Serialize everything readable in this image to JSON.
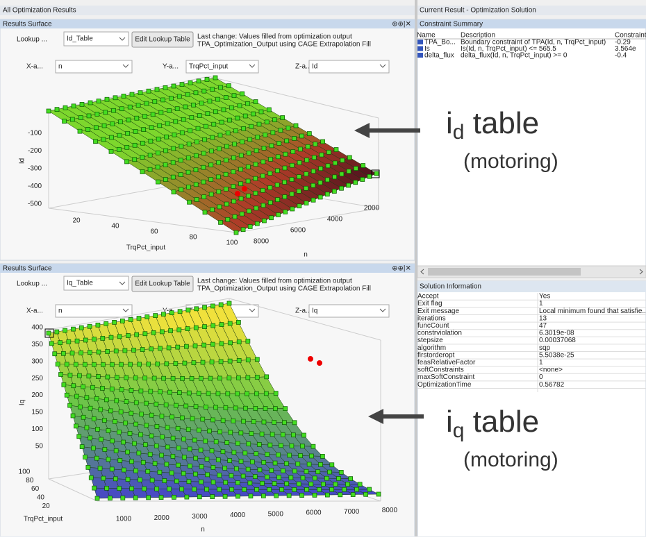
{
  "left_header": "All Optimization Results",
  "right_header": "Current Result - Optimization Solution",
  "panels": [
    {
      "title": "Results Surface",
      "lookup_label": "Lookup ...",
      "lookup_value": "Id_Table",
      "edit_button": "Edit Lookup Table",
      "last_change": [
        "Last change: Values filled from optimization output",
        "TPA_Optimization_Output using CAGE Extrapolation Fill"
      ],
      "x_label": "X-a...",
      "x_value": "n",
      "y_label": "Y-a...",
      "y_value": "TrqPct_input",
      "z_label": "Z-a...",
      "z_value": "Id",
      "plot": {
        "z_ticks": [
          -100,
          -200,
          -300,
          -400,
          -500
        ],
        "z_axis_label": "Id",
        "y_ticks": [
          20,
          40,
          60,
          80,
          100
        ],
        "y_axis_label": "TrqPct_input",
        "x_ticks": [
          2000,
          4000,
          6000,
          8000
        ],
        "x_axis_label": "n"
      }
    },
    {
      "title": "Results Surface",
      "lookup_label": "Lookup ...",
      "lookup_value": "Iq_Table",
      "edit_button": "Edit Lookup Table",
      "last_change": [
        "Last change: Values filled from optimization output",
        "TPA_Optimization_Output using CAGE Extrapolation Fill"
      ],
      "x_label": "X-a...",
      "x_value": "n",
      "y_label": "Y-a...",
      "y_value": "TrqPct_input",
      "z_label": "Z-a...",
      "z_value": "Iq",
      "plot": {
        "z_ticks": [
          400,
          350,
          300,
          250,
          200,
          150,
          100,
          50
        ],
        "z_axis_label": "Iq",
        "y_ticks": [
          100,
          80,
          60,
          40,
          20
        ],
        "y_axis_label": "TrqPct_input",
        "x_ticks": [
          1000,
          2000,
          3000,
          4000,
          5000,
          6000,
          7000,
          8000
        ],
        "x_axis_label": "n"
      }
    }
  ],
  "constraint_summary": {
    "title": "Constraint Summary",
    "columns": [
      "Name",
      "Description",
      "Constraint"
    ],
    "rows": [
      [
        "TPA_Bo...",
        "Boundary constraint of TPA(Id, n, TrqPct_input)",
        "-0.29"
      ],
      [
        "Is",
        "Is(Id, n, TrqPct_input) <= 565.5",
        "3.564e"
      ],
      [
        "delta_flux",
        "delta_flux(Id, n, TrqPct_input) >= 0",
        "-0.4"
      ]
    ]
  },
  "solution_information": {
    "title": "Solution Information",
    "rows": [
      [
        "Accept",
        "Yes"
      ],
      [
        "Exit flag",
        "1"
      ],
      [
        "Exit message",
        "Local minimum found that satisfie..."
      ],
      [
        "iterations",
        "13"
      ],
      [
        "funcCount",
        "47"
      ],
      [
        "constrviolation",
        "6.3019e-08"
      ],
      [
        "stepsize",
        "0.00037068"
      ],
      [
        "algorithm",
        "sqp"
      ],
      [
        "firstorderopt",
        "5.5038e-25"
      ],
      [
        "feasRelativeFactor",
        "1"
      ],
      [
        "softConstraints",
        "<none>"
      ],
      [
        "maxSoftConstraint",
        "0"
      ],
      [
        "OptimizationTime",
        "0.56782"
      ]
    ]
  },
  "annotations": [
    {
      "main": "i",
      "sub": "d",
      "rest": " table",
      "note": "(motoring)"
    },
    {
      "main": "i",
      "sub": "q",
      "rest": " table",
      "note": "(motoring)"
    }
  ]
}
